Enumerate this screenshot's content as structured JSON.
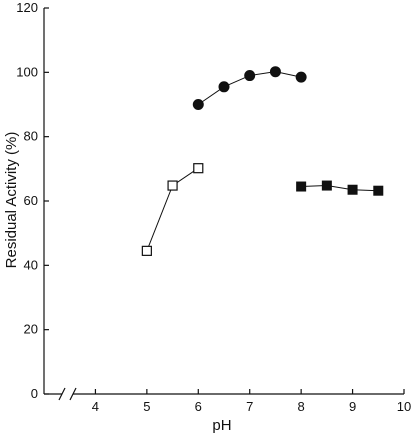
{
  "chart_data": {
    "type": "scatter",
    "title": "",
    "xlabel": "pH",
    "ylabel": "Residual Activity (%)",
    "xlim": [
      3,
      10
    ],
    "ylim": [
      0,
      120
    ],
    "x_axis_break": true,
    "x_ticks": [
      4,
      5,
      6,
      7,
      8,
      9,
      10
    ],
    "y_ticks": [
      0,
      20,
      40,
      60,
      80,
      100,
      120
    ],
    "grid": false,
    "legend": null,
    "series": [
      {
        "marker": "open-square",
        "color": "#111111",
        "points": [
          [
            5.0,
            44.5
          ],
          [
            5.5,
            64.8
          ],
          [
            6.0,
            70.2
          ]
        ]
      },
      {
        "marker": "filled-circle",
        "color": "#111111",
        "points": [
          [
            6.0,
            90.0
          ],
          [
            6.5,
            95.5
          ],
          [
            7.0,
            99.0
          ],
          [
            7.5,
            100.2
          ],
          [
            8.0,
            98.5
          ]
        ]
      },
      {
        "marker": "filled-square",
        "color": "#111111",
        "points": [
          [
            8.0,
            64.5
          ],
          [
            8.5,
            64.8
          ],
          [
            9.0,
            63.5
          ],
          [
            9.5,
            63.2
          ]
        ]
      }
    ]
  }
}
